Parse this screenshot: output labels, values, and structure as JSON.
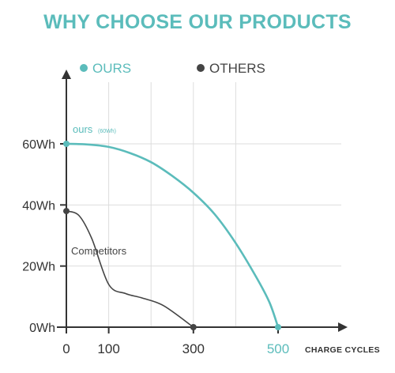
{
  "colors": {
    "ours": "#5bbcbb",
    "others": "#444444",
    "axis": "#333333",
    "grid": "#dddddd"
  },
  "chart_data": {
    "type": "line",
    "title": "WHY CHOOSE OUR PRODUCTS",
    "xlabel": "CHARGE CYCLES",
    "ylabel": "",
    "xlim": [
      0,
      500
    ],
    "ylim": [
      0,
      60
    ],
    "x_ticks": [
      0,
      100,
      300,
      500
    ],
    "x_tick_labels": [
      "0",
      "100",
      "300",
      "500"
    ],
    "y_ticks": [
      0,
      20,
      40,
      60
    ],
    "y_tick_labels": [
      "0Wh",
      "20Wh",
      "40Wh",
      "60Wh"
    ],
    "grid": true,
    "legend_position": "top-left",
    "series": [
      {
        "name": "OURS",
        "color": "#5bbcbb",
        "x": [
          0,
          50,
          100,
          150,
          200,
          250,
          300,
          350,
          400,
          450,
          480,
          500
        ],
        "y": [
          60,
          59.8,
          59,
          57,
          54,
          49.5,
          44,
          37,
          27.5,
          16,
          8,
          0
        ]
      },
      {
        "name": "OTHERS",
        "color": "#444444",
        "x": [
          0,
          30,
          60,
          100,
          140,
          180,
          230,
          300
        ],
        "y": [
          38,
          36.5,
          29,
          14,
          11,
          9.5,
          7,
          0
        ]
      }
    ],
    "annotations": [
      {
        "text": "ours",
        "subtext": "(60Wh)",
        "series": "OURS",
        "x": 0,
        "y": 60
      },
      {
        "text": "Competitors",
        "series": "OTHERS",
        "x": 60,
        "y": 28
      }
    ]
  }
}
